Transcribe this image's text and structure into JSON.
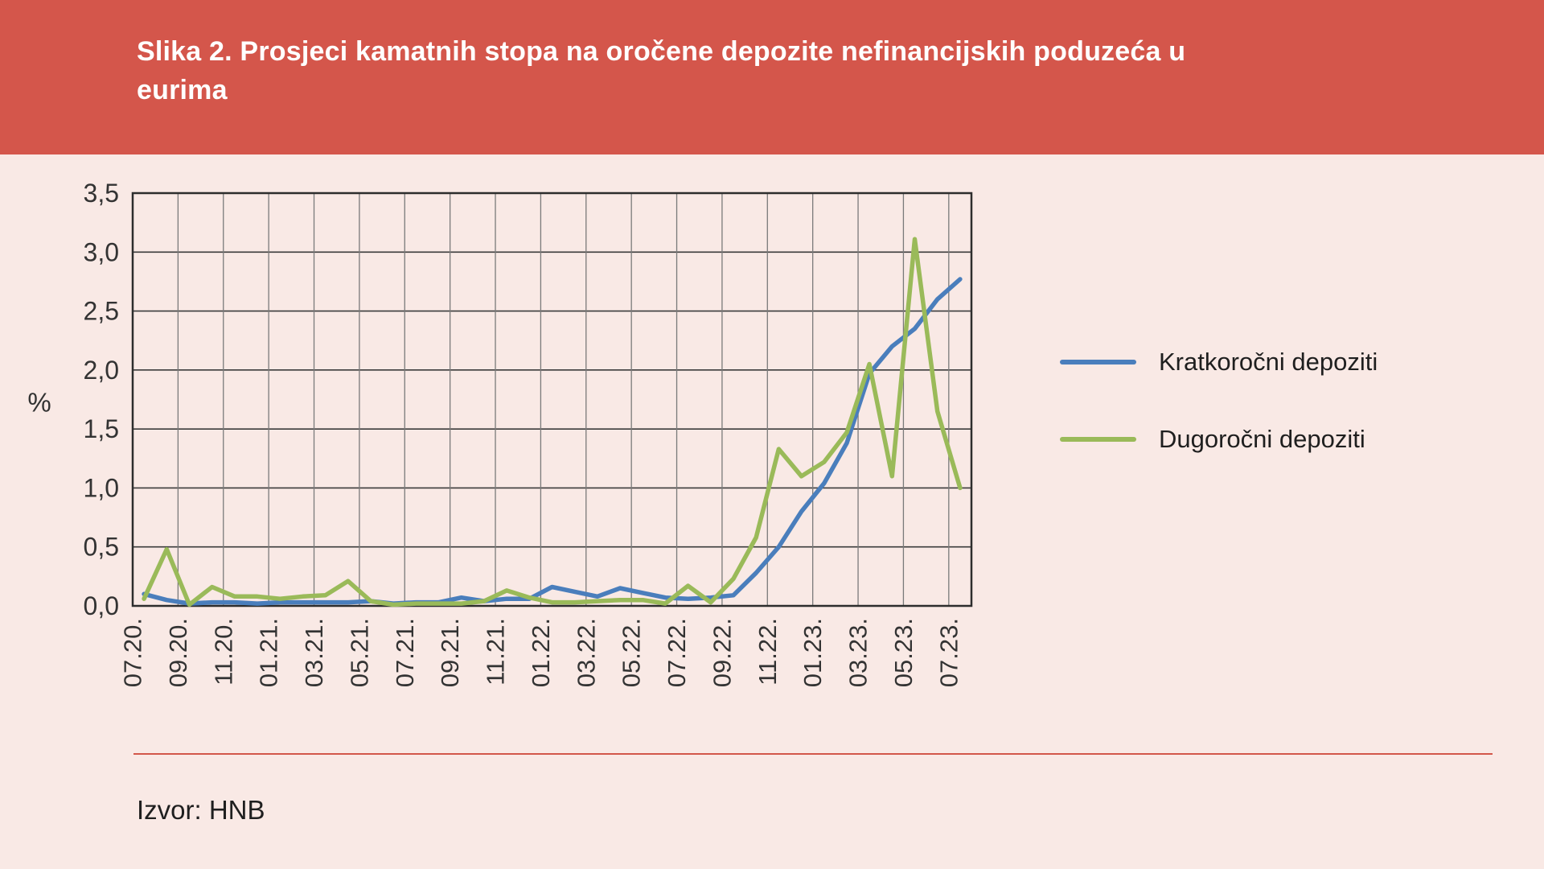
{
  "header": {
    "title_line1": "Slika 2. Prosjeci kamatnih stopa na oročene depozite nefinancijskih poduzeća u",
    "title_line2": "eurima"
  },
  "source": {
    "text": "Izvor: HNB"
  },
  "colors": {
    "header_bg": "#d4564b",
    "page_bg": "#f9e9e5",
    "plot_border": "#2d2d2d",
    "grid_horizontal": "#3b3b3b",
    "grid_vertical": "#7a7a7a",
    "axis_text": "#333333",
    "separator": "#d2574a",
    "title_text": "#ffffff"
  },
  "chart_data": {
    "type": "line",
    "title": "Prosjeci kamatnih stopa na oročene depozite nefinancijskih poduzeća u eurima",
    "xlabel": "",
    "ylabel": "%",
    "ylim": [
      0,
      3.5
    ],
    "ytick_step": 0.5,
    "ytick_labels": [
      "0,0",
      "0,5",
      "1,0",
      "1,5",
      "2,0",
      "2,5",
      "3,0",
      "3,5"
    ],
    "xtick_labels": [
      "07.20.",
      "09.20.",
      "11.20.",
      "01.21.",
      "03.21.",
      "05.21.",
      "07.21.",
      "09.21.",
      "11.21.",
      "01.22.",
      "03.22.",
      "05.22.",
      "07.22.",
      "09.22.",
      "11.22.",
      "01.23.",
      "03.23.",
      "05.23.",
      "07.23."
    ],
    "months": [
      "07.20",
      "08.20",
      "09.20",
      "10.20",
      "11.20",
      "12.20",
      "01.21",
      "02.21",
      "03.21",
      "04.21",
      "05.21",
      "06.21",
      "07.21",
      "08.21",
      "09.21",
      "10.21",
      "11.21",
      "12.21",
      "01.22",
      "02.22",
      "03.22",
      "04.22",
      "05.22",
      "06.22",
      "07.22",
      "08.22",
      "09.22",
      "10.22",
      "11.22",
      "12.22",
      "01.23",
      "02.23",
      "03.23",
      "04.23",
      "05.23",
      "06.23",
      "07.23"
    ],
    "grid": "both",
    "legend_position": "right",
    "series": [
      {
        "name": "Kratkoročni depoziti",
        "color": "#4a7ebc",
        "values": [
          0.1,
          0.05,
          0.02,
          0.03,
          0.03,
          0.02,
          0.03,
          0.03,
          0.03,
          0.03,
          0.04,
          0.02,
          0.03,
          0.03,
          0.07,
          0.04,
          0.06,
          0.06,
          0.16,
          0.12,
          0.08,
          0.15,
          0.11,
          0.07,
          0.06,
          0.07,
          0.09,
          0.28,
          0.5,
          0.8,
          1.04,
          1.38,
          1.97,
          2.2,
          2.35,
          2.6,
          2.77
        ]
      },
      {
        "name": "Dugoročni depoziti",
        "color": "#9aba59",
        "values": [
          0.06,
          0.48,
          0.01,
          0.16,
          0.08,
          0.08,
          0.06,
          0.08,
          0.09,
          0.21,
          0.04,
          0.01,
          0.02,
          0.02,
          0.02,
          0.04,
          0.13,
          0.07,
          0.03,
          0.03,
          0.04,
          0.05,
          0.05,
          0.02,
          0.17,
          0.03,
          0.23,
          0.58,
          1.33,
          1.1,
          1.22,
          1.47,
          2.05,
          1.1,
          3.11,
          1.65,
          1.0
        ]
      }
    ]
  }
}
